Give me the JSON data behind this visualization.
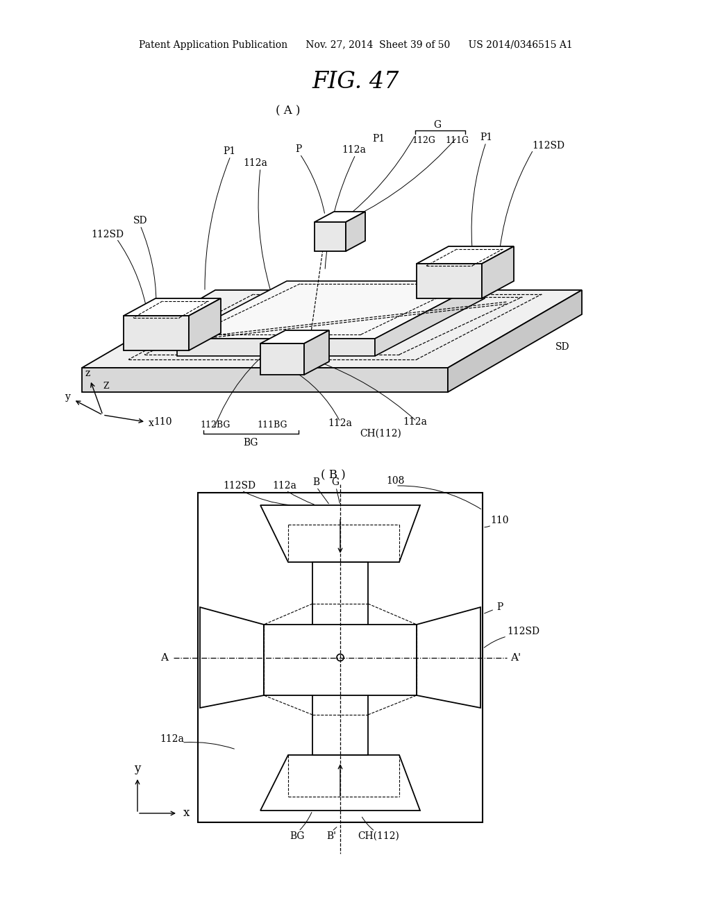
{
  "background_color": "#ffffff",
  "page_header_text": "Patent Application Publication      Nov. 27, 2014  Sheet 39 of 50      US 2014/0346515 A1",
  "figure_title": "FIG. 47",
  "section_A": "( A )",
  "section_B": "( B )"
}
